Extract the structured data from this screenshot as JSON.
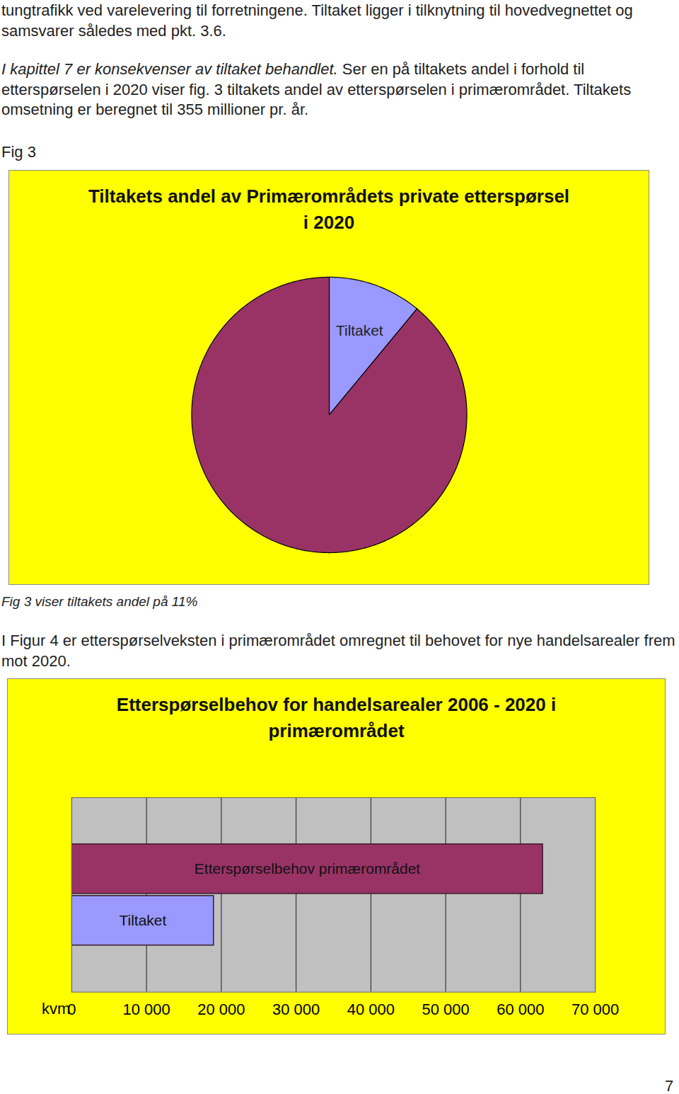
{
  "page": {
    "paragraphs_top": [
      [
        {
          "text": "tungtrafikk ved varelevering til forretningene. Tiltaket ligger i tilknytning til hovedvegnettet og samsvarer således med pkt. 3.6.",
          "italic": false
        }
      ],
      [
        {
          "text": "I kapittel 7 er konsekvenser av tiltaket behandlet.",
          "italic": true
        },
        {
          "text": " Ser en på tiltakets andel i forhold til etterspørselen i 2020 viser fig. 3 tiltakets andel av etterspørselen i primærområdet. Tiltakets omsetning er beregnet til 355 millioner pr. år.",
          "italic": false
        }
      ]
    ],
    "figure_label": "Fig 3",
    "caption": "Fig 3 viser tiltakets andel på 11%",
    "paragraph_middle": "I Figur 4 er etterspørselveksten i primærområdet omregnet til behovet for nye handelsarealer frem mot 2020.",
    "page_number": "7"
  },
  "chart_data": [
    {
      "type": "pie",
      "title": "Tiltakets andel av Primærområdets private etterspørsel i 2020",
      "categories": [
        "Tiltaket",
        null
      ],
      "values": [
        11,
        89
      ],
      "colors": [
        "#9999ff",
        "#993366"
      ]
    },
    {
      "type": "bar",
      "orientation": "horizontal",
      "title": "Etterspørselbehov for handelsarealer 2006 - 2020 i primærområdet",
      "categories": [
        "Etterspørselbehov primærområdet",
        "Tiltaket"
      ],
      "values": [
        63000,
        19000
      ],
      "colors": [
        "#993366",
        "#9999ff"
      ],
      "xlabel": "kvm",
      "xlim": [
        0,
        70000
      ],
      "xticks": [
        0,
        {
          "value": 10000,
          "label": "10 000"
        },
        {
          "value": 20000,
          "label": "20 000"
        },
        {
          "value": 30000,
          "label": "30 000"
        },
        {
          "value": 40000,
          "label": "40 000"
        },
        {
          "value": 50000,
          "label": "50 000"
        },
        {
          "value": 60000,
          "label": "60 000"
        },
        {
          "value": 70000,
          "label": "70 000"
        }
      ],
      "grid": true,
      "tick_labels": "x"
    }
  ]
}
